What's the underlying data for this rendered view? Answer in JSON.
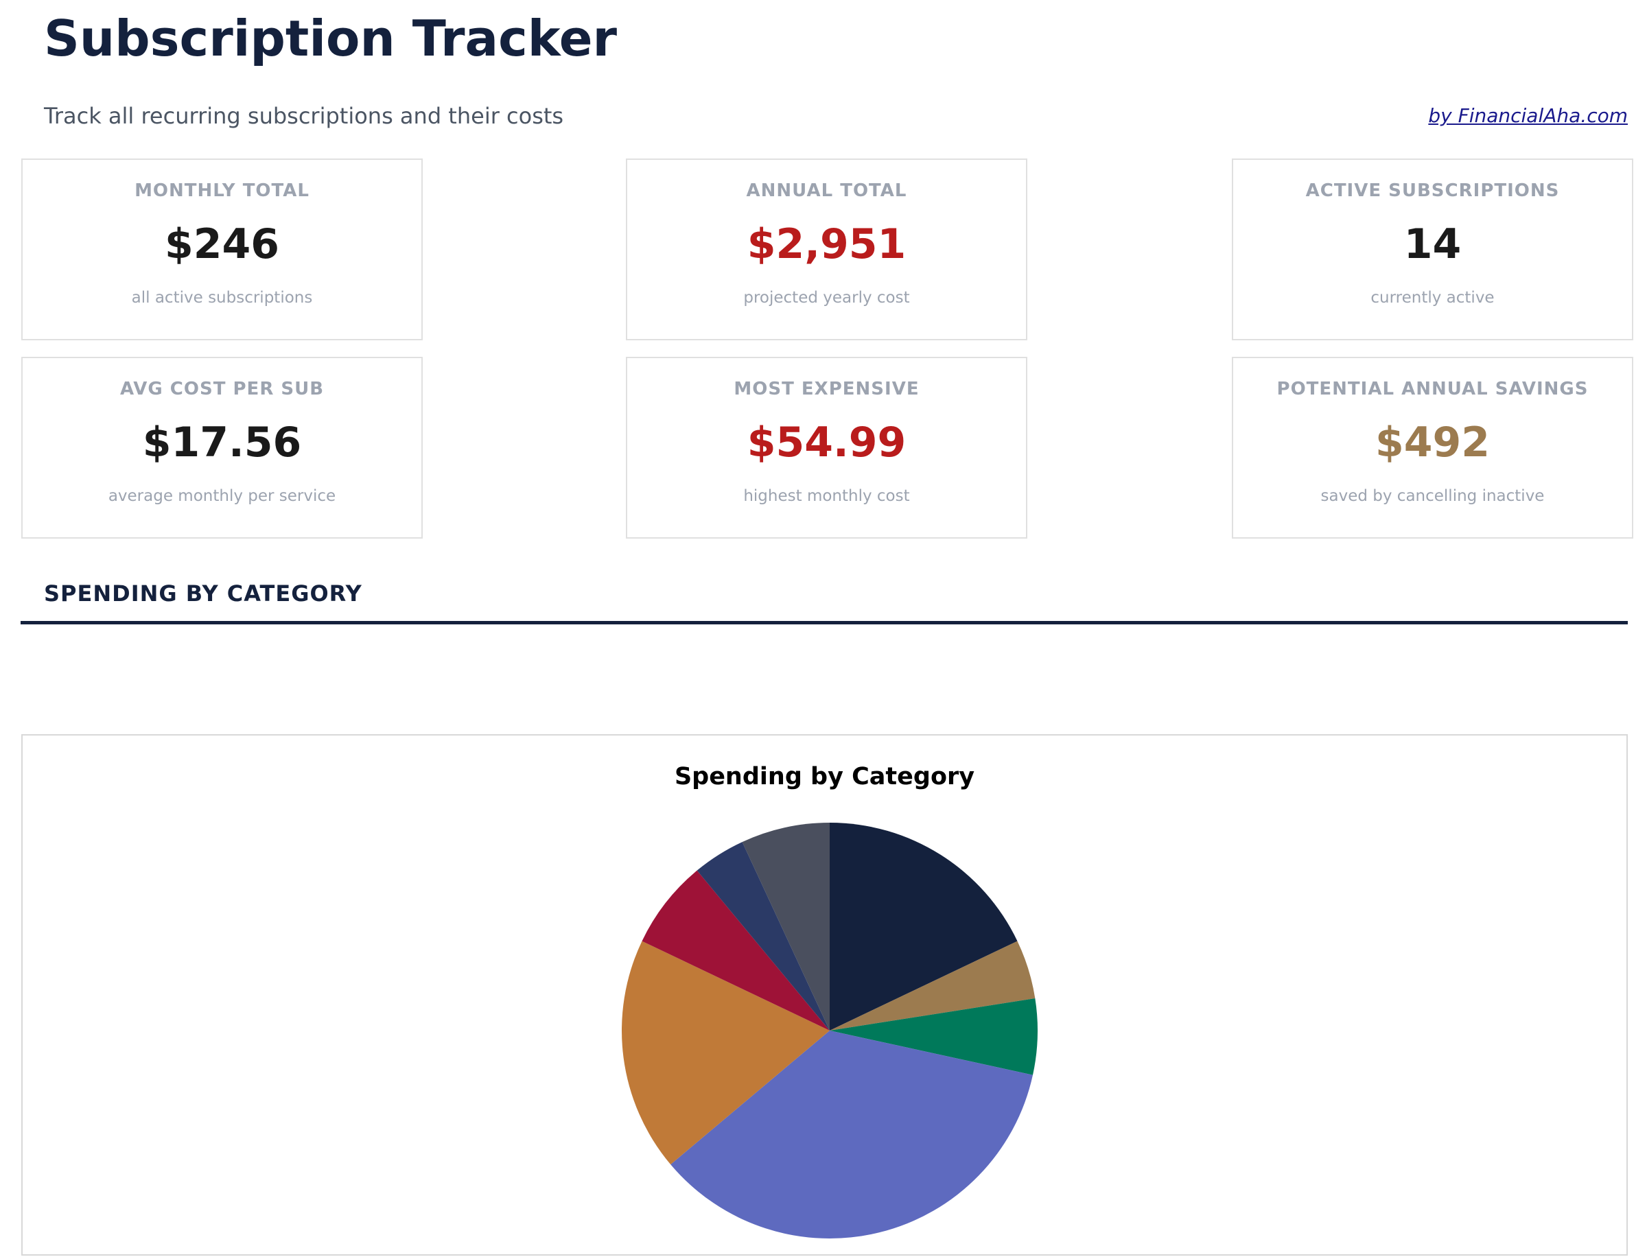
{
  "header": {
    "title": "Subscription Tracker",
    "subtitle": "Track all recurring subscriptions and their costs",
    "credit": "by FinancialAha.com"
  },
  "cards": [
    {
      "label": "MONTHLY TOTAL",
      "value": "$246",
      "sub": "all active subscriptions",
      "color": "#1a1a1a"
    },
    {
      "label": "ANNUAL TOTAL",
      "value": "$2,951",
      "sub": "projected yearly cost",
      "color": "#b91c1c"
    },
    {
      "label": "ACTIVE SUBSCRIPTIONS",
      "value": "14",
      "sub": "currently active",
      "color": "#1a1a1a"
    },
    {
      "label": "AVG COST PER SUB",
      "value": "$17.56",
      "sub": "average monthly per service",
      "color": "#1a1a1a"
    },
    {
      "label": "MOST EXPENSIVE",
      "value": "$54.99",
      "sub": "highest monthly cost",
      "color": "#b91c1c"
    },
    {
      "label": "POTENTIAL ANNUAL SAVINGS",
      "value": "$492",
      "sub": "saved by cancelling inactive",
      "color": "#9c7b4f"
    }
  ],
  "section": {
    "title": "SPENDING BY CATEGORY"
  },
  "chart_data": {
    "type": "pie",
    "title": "Spending by Category",
    "start_angle": "top",
    "direction": "clockwise",
    "values": [
      17.9,
      4.6,
      5.9,
      35.4,
      18.2,
      6.9,
      4.1,
      6.9
    ],
    "unit": "percent",
    "colors": [
      "#14213d",
      "#9c7b4f",
      "#00795a",
      "#5e6abf",
      "#c07a38",
      "#9e1237",
      "#2b3a66",
      "#4a4f5e"
    ],
    "legend": "none"
  }
}
